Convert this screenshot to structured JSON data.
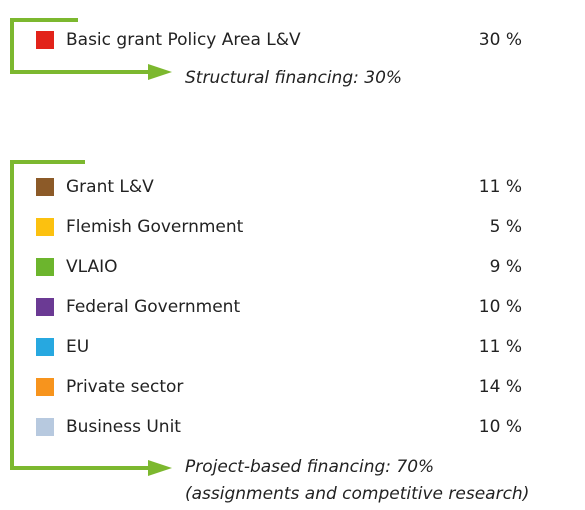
{
  "groups": [
    {
      "items": [
        {
          "name": "Basic grant Policy Area L&V",
          "color": "#e2231a",
          "value": "30 %"
        }
      ],
      "caption": [
        "Structural financing: 30%"
      ]
    },
    {
      "items": [
        {
          "name": "Grant L&V",
          "color": "#8c5a28",
          "value": "11 %"
        },
        {
          "name": "Flemish Government",
          "color": "#fcc10f",
          "value": "5 %"
        },
        {
          "name": "VLAIO",
          "color": "#6cb52d",
          "value": "9 %"
        },
        {
          "name": "Federal Government",
          "color": "#6b3a94",
          "value": "10 %"
        },
        {
          "name": "EU",
          "color": "#27a8e0",
          "value": "11 %"
        },
        {
          "name": "Private sector",
          "color": "#f7941d",
          "value": "14 %"
        },
        {
          "name": "Business Unit",
          "color": "#b7c9df",
          "value": "10 %"
        }
      ],
      "caption": [
        "Project-based financing: 70%",
        "(assignments and competitive research)"
      ]
    }
  ]
}
